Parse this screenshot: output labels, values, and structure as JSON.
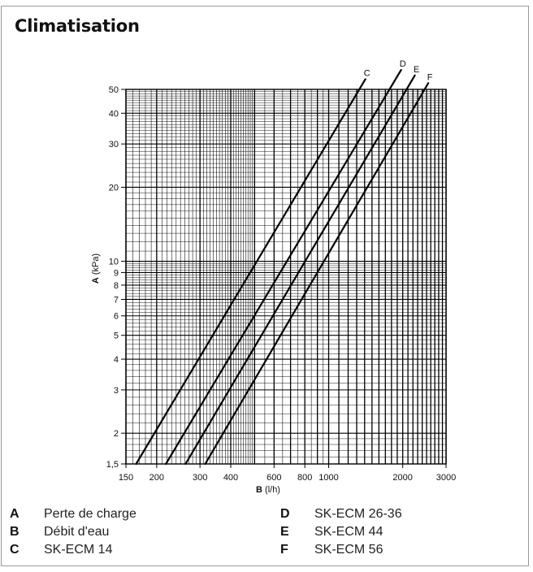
{
  "title": "Climatisation",
  "chart_data": {
    "type": "line",
    "title": "Climatisation",
    "xlabel_key": "B",
    "xlabel_unit": "(l/h)",
    "ylabel_key": "A",
    "ylabel_unit": "(kPa)",
    "x_scale": "log",
    "y_scale": "log",
    "xlim": [
      150,
      3000
    ],
    "ylim": [
      1.5,
      50
    ],
    "grid": true,
    "x_ticks": [
      150,
      200,
      300,
      400,
      600,
      800,
      1000,
      2000,
      3000
    ],
    "x_tick_labels": [
      "150",
      "200",
      "300",
      "400",
      "600",
      "800",
      "1000",
      "2000",
      "3000"
    ],
    "y_ticks": [
      1.5,
      2,
      3,
      4,
      5,
      6,
      7,
      8,
      9,
      10,
      20,
      30,
      40,
      50
    ],
    "y_tick_labels": [
      "1,5",
      "2",
      "3",
      "4",
      "5",
      "6",
      "7",
      "8",
      "9",
      "10",
      "20",
      "30",
      "40",
      "50"
    ],
    "series": [
      {
        "name": "C",
        "x": [
          165,
          1410
        ],
        "y": [
          1.5,
          55
        ]
      },
      {
        "name": "D",
        "x": [
          218,
          1970
        ],
        "y": [
          1.5,
          60
        ]
      },
      {
        "name": "E",
        "x": [
          262,
          2240
        ],
        "y": [
          1.5,
          57
        ]
      },
      {
        "name": "F",
        "x": [
          315,
          2540
        ],
        "y": [
          1.5,
          53
        ]
      }
    ]
  },
  "legend": [
    {
      "key": "A",
      "text": "Perte de charge"
    },
    {
      "key": "B",
      "text": "Débit d'eau"
    },
    {
      "key": "C",
      "text": "SK-ECM 14"
    },
    {
      "key": "D",
      "text": "SK-ECM 26-36"
    },
    {
      "key": "E",
      "text": "SK-ECM 44"
    },
    {
      "key": "F",
      "text": "SK-ECM 56"
    }
  ]
}
